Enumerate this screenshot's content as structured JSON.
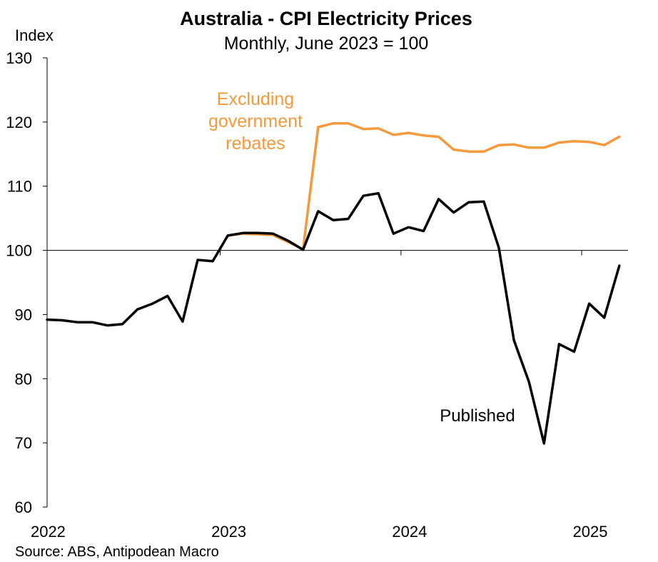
{
  "chart_data": {
    "type": "line",
    "title": "Australia - CPI Electricity Prices",
    "subtitle": "Monthly, June 2023 = 100",
    "ylabel": "Index",
    "source": "Source: ABS, Antipodean Macro",
    "ylim": [
      60,
      130
    ],
    "yticks": [
      60,
      70,
      80,
      90,
      100,
      110,
      120,
      130
    ],
    "xticks": [
      "2022",
      "2023",
      "2024",
      "2025"
    ],
    "x_months": [
      "2022-01",
      "2022-02",
      "2022-03",
      "2022-04",
      "2022-05",
      "2022-06",
      "2022-07",
      "2022-08",
      "2022-09",
      "2022-10",
      "2022-11",
      "2022-12",
      "2023-01",
      "2023-02",
      "2023-03",
      "2023-04",
      "2023-05",
      "2023-06",
      "2023-07",
      "2023-08",
      "2023-09",
      "2023-10",
      "2023-11",
      "2023-12",
      "2024-01",
      "2024-02",
      "2024-03",
      "2024-04",
      "2024-05",
      "2024-06",
      "2024-07",
      "2024-08",
      "2024-09",
      "2024-10",
      "2024-11",
      "2024-12",
      "2025-01",
      "2025-02",
      "2025-03"
    ],
    "reference_line": 100,
    "grid": false,
    "series": [
      {
        "name": "Excluding government rebates",
        "label": [
          "Excluding",
          "government",
          "rebates"
        ],
        "color": "#F59A3C",
        "values": [
          null,
          null,
          null,
          null,
          null,
          null,
          null,
          null,
          null,
          null,
          null,
          null,
          102.3,
          102.6,
          102.5,
          102.4,
          101.3,
          100.2,
          119.2,
          119.8,
          119.8,
          118.9,
          119.0,
          118.0,
          118.3,
          117.9,
          117.7,
          115.7,
          115.4,
          115.4,
          116.4,
          116.5,
          116.0,
          116.0,
          116.8,
          117.0,
          116.9,
          116.4,
          117.7
        ]
      },
      {
        "name": "Published",
        "label": [
          "Published"
        ],
        "color": "#000000",
        "values": [
          89.2,
          89.1,
          88.8,
          88.8,
          88.3,
          88.5,
          90.8,
          91.7,
          92.9,
          88.9,
          98.5,
          98.3,
          102.3,
          102.7,
          102.7,
          102.6,
          101.5,
          100.1,
          106.1,
          104.7,
          104.9,
          108.5,
          108.9,
          102.6,
          103.6,
          103.0,
          108.0,
          105.9,
          107.5,
          107.6,
          100.4,
          86.0,
          79.5,
          69.9,
          85.4,
          84.2,
          91.7,
          89.5,
          97.6
        ]
      }
    ]
  }
}
